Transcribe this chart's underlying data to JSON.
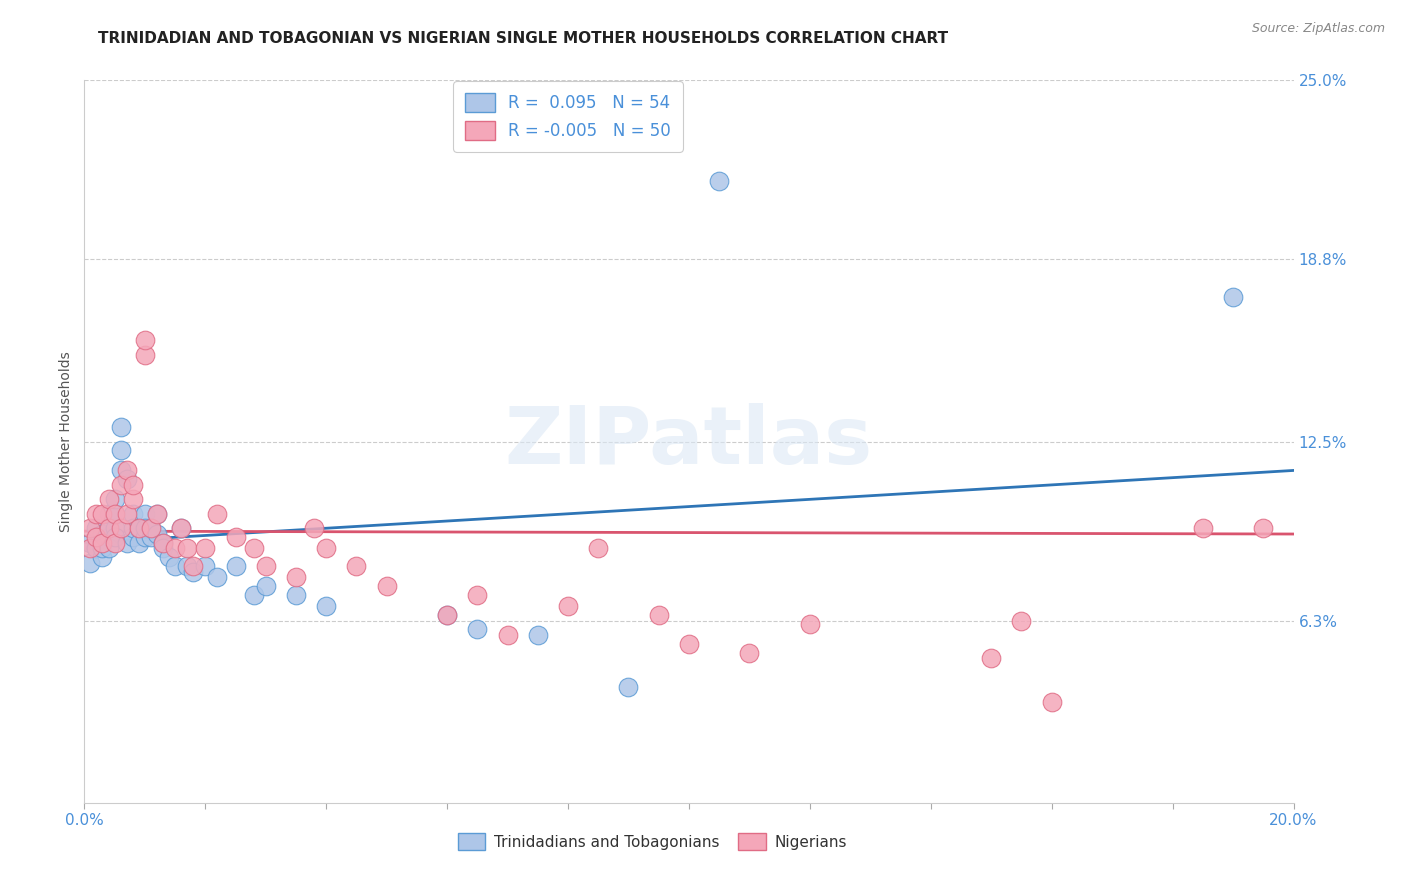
{
  "title": "TRINIDADIAN AND TOBAGONIAN VS NIGERIAN SINGLE MOTHER HOUSEHOLDS CORRELATION CHART",
  "source": "Source: ZipAtlas.com",
  "ylabel": "Single Mother Households",
  "xlim": [
    0.0,
    0.2
  ],
  "ylim": [
    0.0,
    0.25
  ],
  "ytick_labels_right": [
    "6.3%",
    "12.5%",
    "18.8%",
    "25.0%"
  ],
  "ytick_positions_right": [
    0.063,
    0.125,
    0.188,
    0.25
  ],
  "watermark": "ZIPatlas",
  "series1_name": "Trinidadians and Tobagonians",
  "series1_color": "#aec6e8",
  "series1_edge_color": "#5b9bd5",
  "series1_line_color": "#2e75b6",
  "series2_name": "Nigerians",
  "series2_color": "#f4a7b9",
  "series2_edge_color": "#e06c85",
  "series2_line_color": "#d9546e",
  "series1_R": 0.095,
  "series1_N": 54,
  "series2_R": -0.005,
  "series2_N": 50,
  "series1_x": [
    0.001,
    0.001,
    0.002,
    0.002,
    0.002,
    0.003,
    0.003,
    0.003,
    0.003,
    0.004,
    0.004,
    0.004,
    0.004,
    0.005,
    0.005,
    0.005,
    0.005,
    0.006,
    0.006,
    0.006,
    0.007,
    0.007,
    0.008,
    0.008,
    0.008,
    0.009,
    0.009,
    0.01,
    0.01,
    0.01,
    0.011,
    0.011,
    0.012,
    0.012,
    0.013,
    0.013,
    0.014,
    0.015,
    0.016,
    0.017,
    0.018,
    0.02,
    0.022,
    0.025,
    0.028,
    0.03,
    0.035,
    0.04,
    0.06,
    0.065,
    0.075,
    0.09,
    0.105,
    0.19
  ],
  "series1_y": [
    0.083,
    0.09,
    0.088,
    0.095,
    0.088,
    0.085,
    0.09,
    0.093,
    0.088,
    0.092,
    0.095,
    0.1,
    0.088,
    0.095,
    0.092,
    0.1,
    0.105,
    0.13,
    0.122,
    0.115,
    0.112,
    0.09,
    0.092,
    0.1,
    0.095,
    0.09,
    0.095,
    0.092,
    0.1,
    0.095,
    0.092,
    0.095,
    0.093,
    0.1,
    0.09,
    0.088,
    0.085,
    0.082,
    0.095,
    0.082,
    0.08,
    0.082,
    0.078,
    0.082,
    0.072,
    0.075,
    0.072,
    0.068,
    0.065,
    0.06,
    0.058,
    0.04,
    0.215,
    0.175
  ],
  "series2_x": [
    0.001,
    0.001,
    0.002,
    0.002,
    0.003,
    0.003,
    0.004,
    0.004,
    0.005,
    0.005,
    0.006,
    0.006,
    0.007,
    0.007,
    0.008,
    0.008,
    0.009,
    0.01,
    0.01,
    0.011,
    0.012,
    0.013,
    0.015,
    0.016,
    0.017,
    0.018,
    0.02,
    0.022,
    0.025,
    0.028,
    0.03,
    0.035,
    0.038,
    0.04,
    0.045,
    0.05,
    0.06,
    0.065,
    0.07,
    0.08,
    0.085,
    0.095,
    0.1,
    0.11,
    0.12,
    0.15,
    0.155,
    0.16,
    0.185,
    0.195
  ],
  "series2_y": [
    0.088,
    0.095,
    0.092,
    0.1,
    0.09,
    0.1,
    0.095,
    0.105,
    0.09,
    0.1,
    0.11,
    0.095,
    0.115,
    0.1,
    0.105,
    0.11,
    0.095,
    0.155,
    0.16,
    0.095,
    0.1,
    0.09,
    0.088,
    0.095,
    0.088,
    0.082,
    0.088,
    0.1,
    0.092,
    0.088,
    0.082,
    0.078,
    0.095,
    0.088,
    0.082,
    0.075,
    0.065,
    0.072,
    0.058,
    0.068,
    0.088,
    0.065,
    0.055,
    0.052,
    0.062,
    0.05,
    0.063,
    0.035,
    0.095,
    0.095
  ],
  "background_color": "#ffffff",
  "grid_color": "#cccccc",
  "title_fontsize": 11,
  "axis_label_fontsize": 10,
  "tick_fontsize": 11,
  "legend_fontsize": 12,
  "trend_line1_x0": 0.0,
  "trend_line1_y0": 0.09,
  "trend_line1_x1": 0.2,
  "trend_line1_y1": 0.115,
  "trend_line2_x0": 0.0,
  "trend_line2_y0": 0.094,
  "trend_line2_x1": 0.2,
  "trend_line2_y1": 0.093
}
